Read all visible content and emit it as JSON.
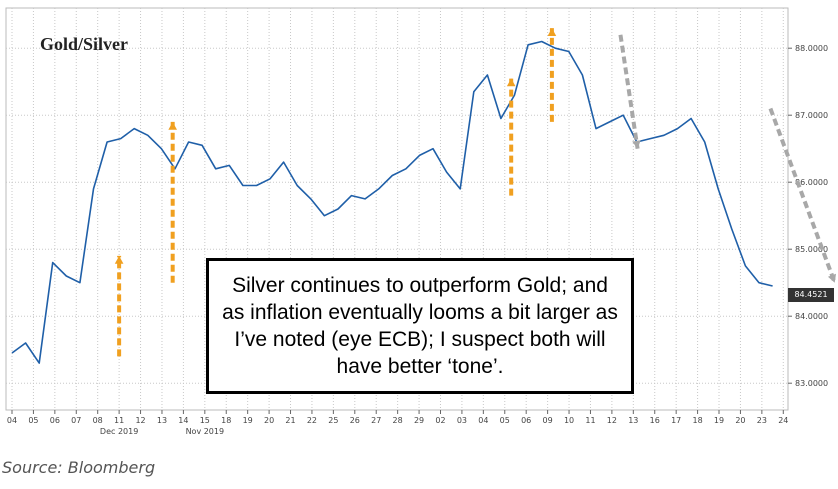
{
  "chart_data": {
    "type": "line",
    "title": "Gold/Silver",
    "xlabel": "",
    "ylabel": "",
    "x_ticks": [
      "04",
      "05",
      "06",
      "07",
      "08",
      "11",
      "12",
      "13",
      "14",
      "15",
      "18",
      "19",
      "20",
      "21",
      "22",
      "25",
      "26",
      "27",
      "28",
      "29",
      "02",
      "03",
      "04",
      "05",
      "06",
      "09",
      "10",
      "11",
      "12",
      "13",
      "16",
      "17",
      "18",
      "19",
      "20",
      "23",
      "24"
    ],
    "month_labels": [
      {
        "label": "Nov 2019",
        "tick": "15"
      },
      {
        "label": "Dec 2019",
        "tick": "11"
      }
    ],
    "y_ticks": [
      "83.0000",
      "84.0000",
      "85.0000",
      "86.0000",
      "87.0000",
      "88.0000"
    ],
    "ylim": [
      82.6,
      88.6
    ],
    "grid": true,
    "y_axis_side": "right",
    "last_value_label": "84.4521",
    "series": [
      {
        "values": [
          83.45,
          83.6,
          83.3,
          84.8,
          84.6,
          84.5,
          85.9,
          86.6,
          86.65,
          86.8,
          86.7,
          86.5,
          86.2,
          86.6,
          86.55,
          86.2,
          86.25,
          85.95,
          85.95,
          86.05,
          86.3,
          85.95,
          85.75,
          85.5,
          85.6,
          85.8,
          85.75,
          85.9,
          86.1,
          86.2,
          86.4,
          86.5,
          86.15,
          85.9,
          87.35,
          87.6,
          86.95,
          87.3,
          88.05,
          88.1,
          88.0,
          87.95,
          87.6,
          86.8,
          86.9,
          87.0,
          86.6,
          86.65,
          86.7,
          86.8,
          86.95,
          86.6,
          85.9,
          85.3,
          84.75,
          84.5,
          84.45
        ]
      }
    ],
    "annotations": {
      "orange_arrows": [
        {
          "x_from": 5.0,
          "y_from": 83.4,
          "x_to": 5.0,
          "y_to": 84.9
        },
        {
          "x_from": 7.5,
          "y_from": 84.5,
          "x_to": 7.5,
          "y_to": 86.9
        },
        {
          "x_from": 23.3,
          "y_from": 85.8,
          "x_to": 23.3,
          "y_to": 87.55
        },
        {
          "x_from": 25.2,
          "y_from": 86.9,
          "x_to": 25.2,
          "y_to": 88.3
        }
      ],
      "gray_arrows": [
        {
          "x_from": 28.4,
          "y_from": 88.2,
          "x_to": 29.2,
          "y_to": 86.5
        },
        {
          "x_from": 35.4,
          "y_from": 87.1,
          "x_to": 38.4,
          "y_to": 84.5
        }
      ]
    },
    "colors": {
      "line": "#1f5fa8",
      "orange_arrow": "#f0a020",
      "gray_arrow": "#a8a8a8",
      "grid": "#c8c8c8"
    }
  },
  "title_text": "Gold/Silver",
  "callout": {
    "text": "Silver continues to outperform Gold; and as inflation eventually looms a bit larger as I’ve noted (eye ECB); I suspect both will have better ‘tone’."
  },
  "source": "Source: Bloomberg"
}
